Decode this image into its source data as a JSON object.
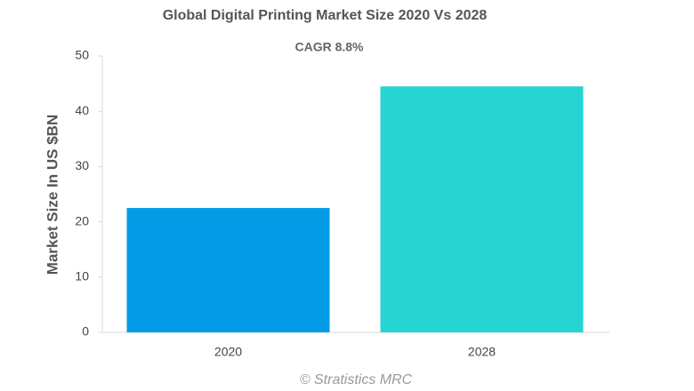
{
  "chart_data": {
    "type": "bar",
    "title": "Global Digital Printing Market Size 2020 Vs 2028",
    "subtitle": "CAGR 8.8%",
    "y_label": "Market Size In US $BN",
    "source": "© Stratistics MRC",
    "categories": [
      "2020",
      "2028"
    ],
    "values": [
      22.5,
      44.5
    ],
    "colors": [
      "#039be5",
      "#26d4d4"
    ],
    "ylim": [
      0,
      50
    ],
    "yticks": [
      0,
      10,
      20,
      30,
      40,
      50
    ],
    "grid": false
  }
}
